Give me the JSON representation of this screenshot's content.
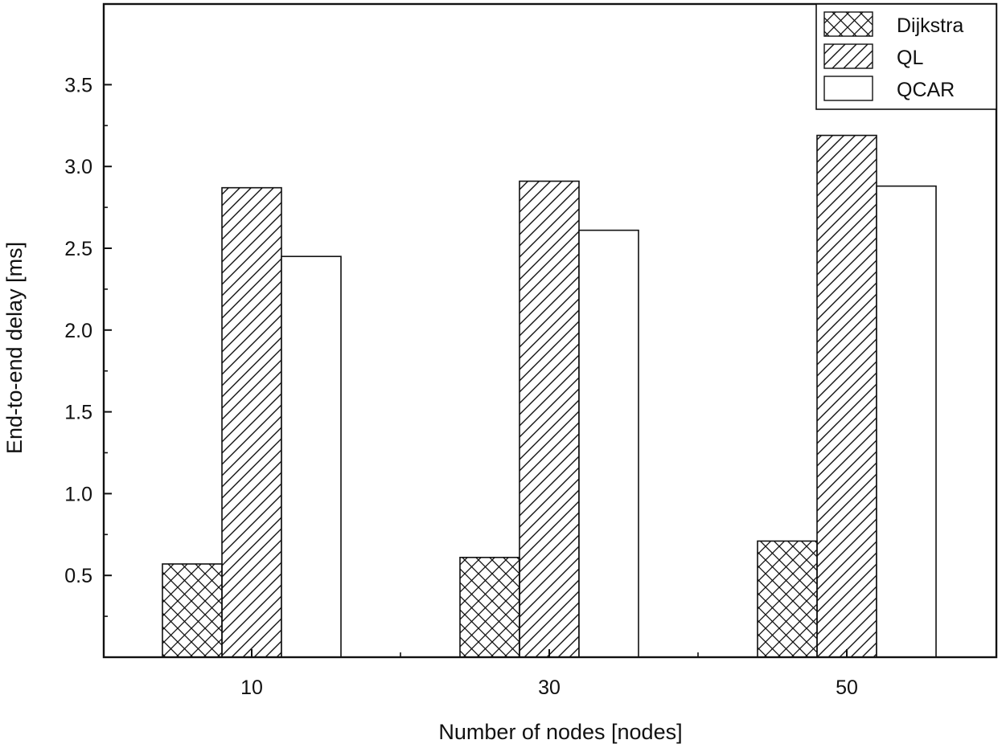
{
  "chart_data": {
    "type": "bar",
    "title": "",
    "xlabel": "Number of nodes [nodes]",
    "ylabel": "End-to-end delay [ms]",
    "categories": [
      "10",
      "30",
      "50"
    ],
    "ylim": [
      0,
      4.0
    ],
    "yticks": [
      "0.5",
      "1.0",
      "1.5",
      "2.0",
      "2.5",
      "3.0",
      "3.5"
    ],
    "legend_position": "top-right",
    "grid": false,
    "series": [
      {
        "name": "Dijkstra",
        "pattern": "crosshatch",
        "values": [
          0.57,
          0.61,
          0.71
        ]
      },
      {
        "name": "QL",
        "pattern": "diagonal",
        "values": [
          2.87,
          2.91,
          3.19
        ]
      },
      {
        "name": "QCAR",
        "pattern": "none",
        "values": [
          2.45,
          2.61,
          2.88
        ]
      }
    ]
  }
}
